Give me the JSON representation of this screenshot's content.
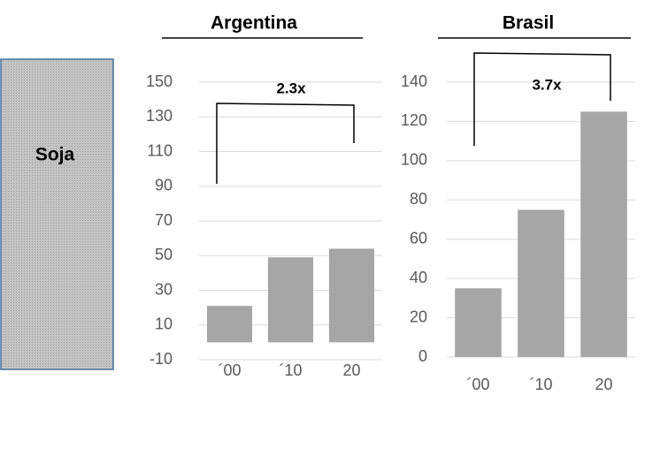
{
  "row_label": "Soja",
  "chart_data": [
    {
      "type": "bar",
      "title": "Argentina",
      "categories": [
        "´00",
        "´10",
        "20"
      ],
      "values": [
        21,
        49,
        54
      ],
      "color": "#a6a6a6",
      "ylim": [
        -10,
        150
      ],
      "yticks": [
        -10,
        10,
        30,
        50,
        70,
        90,
        110,
        130,
        150
      ],
      "grid": true,
      "annotation": "2.3x"
    },
    {
      "type": "bar",
      "title": "Brasil",
      "categories": [
        "´00",
        "´10",
        "20"
      ],
      "values": [
        35,
        75,
        125
      ],
      "color": "#a6a6a6",
      "ylim": [
        0,
        140
      ],
      "yticks": [
        0,
        20,
        40,
        60,
        80,
        100,
        120,
        140
      ],
      "grid": true,
      "annotation": "3.7x"
    }
  ]
}
